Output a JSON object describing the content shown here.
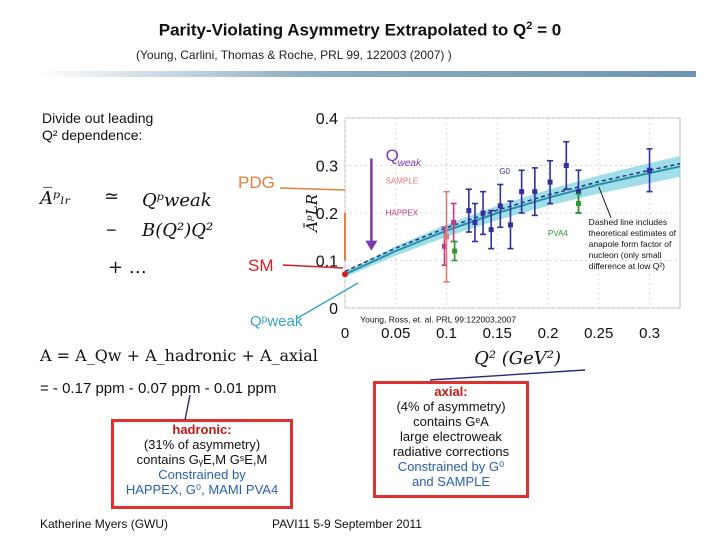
{
  "title": {
    "main": "Parity-Violating Asymmetry Extrapolated to Q",
    "sup": "2",
    "suffix": " = 0"
  },
  "citation": "(Young, Carlini, Thomas & Roche, PRL 99, 122003 (2007) )",
  "left_panel": {
    "divide_line1": "Divide out leading",
    "divide_line2": "Q² dependence:",
    "formula_lhs": "A̅ᵖₗᵣ",
    "formula_approx": "≃",
    "formula_rhs1": "Qᵖweak",
    "formula_minus": "−",
    "formula_rhs2": "B(Q²)Q²",
    "formula_plus": "+ …",
    "pdg_label": "PDG",
    "sm_label": "SM",
    "qp_label": "Qᵖweak",
    "decomposition": "A =  A_Qw  +  A_hadronic  +  A_axial",
    "values": "= - 0.17  ppm  - 0.07 ppm  - 0.01 ppm"
  },
  "hadronic_box": {
    "title": "hadronic:",
    "line1": "(31% of asymmetry)",
    "line2": "contains GᵧE,M GˢE,M",
    "line3": "Constrained by",
    "line4": "HAPPEX, G⁰, MAMI PVA4"
  },
  "axial_box": {
    "title": "axial:",
    "line1": "(4% of asymmetry)",
    "line2": "contains  GᵉA",
    "line3": "large electroweak",
    "line4": "radiative corrections",
    "line5": "Constrained by G⁰",
    "line6": "and SAMPLE"
  },
  "footer": {
    "left": "Katherine Myers (GWU)",
    "middle": "PAVI11 5-9 September 2011"
  },
  "colors": {
    "band": "#8fd8e6",
    "fit": "#2a8fa8",
    "g0": "#3030a0",
    "happex": "#c03a8a",
    "sample": "#e07878",
    "pva4": "#2e9a2e",
    "qweak_arrow": "#7a3ab0",
    "pdg": "#e08040",
    "sm": "#d42020"
  },
  "chart_data": {
    "type": "scatter",
    "title": "",
    "xlabel": "Q² (GeV²)",
    "ylabel": "ĀᵖLR",
    "xlim": [
      0,
      0.33
    ],
    "ylim": [
      0,
      0.4
    ],
    "x_ticks": [
      "0",
      "0.05",
      "0.1",
      "0.15",
      "0.2",
      "0.25",
      "0.3"
    ],
    "y_ticks": [
      "0",
      "0.1",
      "0.2",
      "0.3",
      "0.4"
    ],
    "x_tick_values": [
      0,
      0.05,
      0.1,
      0.15,
      0.2,
      0.25,
      0.3
    ],
    "y_tick_values": [
      0,
      0.1,
      0.2,
      0.3,
      0.4
    ],
    "annotations": {
      "qweak": "Q",
      "qweak_sub": "weak",
      "sample": "SAMPLE",
      "g0": "G0",
      "happex": "HAPPEX",
      "pva4": "PVA4",
      "dashed_note_1": "Dashed line includes",
      "dashed_note_2": "theoretical estimates of",
      "dashed_note_3": "anapole form factor of",
      "dashed_note_4": "nucleon (only small",
      "dashed_note_5": "difference at low Q²)",
      "reference": "Young, Ross, et. al. PRL 99:122003,2007"
    },
    "fit_line": {
      "x": [
        0,
        0.05,
        0.1,
        0.15,
        0.2,
        0.25,
        0.3,
        0.33
      ],
      "y": [
        0.071,
        0.12,
        0.163,
        0.2,
        0.232,
        0.26,
        0.284,
        0.298
      ]
    },
    "band_halfwidth": [
      0.006,
      0.01,
      0.013,
      0.015,
      0.017,
      0.019,
      0.021,
      0.022
    ],
    "series": [
      {
        "name": "G0",
        "color_key": "g0",
        "x": [
          0.122,
          0.128,
          0.136,
          0.144,
          0.153,
          0.163,
          0.174,
          0.187,
          0.202,
          0.218,
          0.23,
          0.3
        ],
        "y": [
          0.205,
          0.18,
          0.2,
          0.165,
          0.215,
          0.175,
          0.245,
          0.245,
          0.265,
          0.3,
          0.245,
          0.29
        ],
        "err": [
          0.045,
          0.04,
          0.045,
          0.04,
          0.045,
          0.05,
          0.045,
          0.05,
          0.045,
          0.05,
          0.045,
          0.045
        ]
      },
      {
        "name": "HAPPEX",
        "color_key": "happex",
        "x": [
          0.098,
          0.107
        ],
        "y": [
          0.13,
          0.18
        ],
        "err": [
          0.04,
          0.04
        ]
      },
      {
        "name": "SAMPLE",
        "color_key": "sample",
        "x": [
          0.1
        ],
        "y": [
          0.15
        ],
        "err": [
          0.095
        ]
      },
      {
        "name": "PVA4",
        "color_key": "pva4",
        "x": [
          0.108,
          0.23
        ],
        "y": [
          0.12,
          0.22
        ],
        "err": [
          0.02,
          0.02
        ]
      }
    ],
    "markers": {
      "pdg": {
        "x": 0,
        "y_low": 0.1,
        "y_high": 0.2
      },
      "sm": {
        "x": 0,
        "y": 0.071
      },
      "qweak": {
        "x": 0.026,
        "y_low": 0.125,
        "y_high": 0.315
      }
    }
  }
}
